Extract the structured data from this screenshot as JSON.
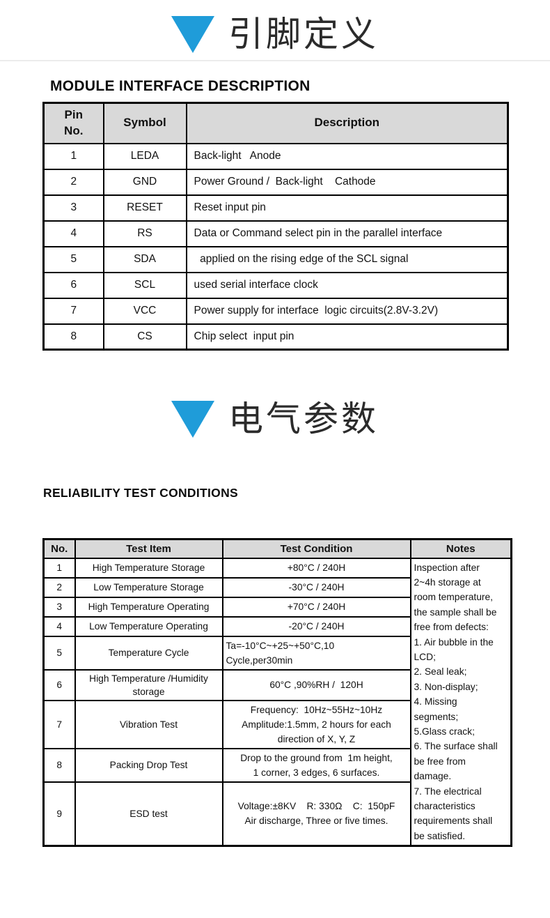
{
  "page": {
    "accent_color": "#1f9cd9",
    "table_header_bg": "#d9d9d9"
  },
  "sections": {
    "pin": {
      "title_cn": "引脚定义",
      "heading": "MODULE INTERFACE DESCRIPTION"
    },
    "elec": {
      "title_cn": "电气参数",
      "heading": "RELIABILITY TEST CONDITIONS"
    }
  },
  "pin_table": {
    "col_pin": "Pin\nNo.",
    "col_symbol": "Symbol",
    "col_description": "Description",
    "rows": [
      {
        "pin": "1",
        "symbol": "LEDA",
        "description": "Back-light   Anode"
      },
      {
        "pin": "2",
        "symbol": "GND",
        "description": "Power Ground /  Back-light    Cathode"
      },
      {
        "pin": "3",
        "symbol": "RESET",
        "description": "Reset input pin"
      },
      {
        "pin": "4",
        "symbol": "RS",
        "description": "Data or Command select pin in the parallel interface"
      },
      {
        "pin": "5",
        "symbol": "SDA",
        "description": "  applied on the rising edge of the SCL signal"
      },
      {
        "pin": "6",
        "symbol": "SCL",
        "description": "used serial interface clock"
      },
      {
        "pin": "7",
        "symbol": "VCC",
        "description": "Power supply for interface  logic circuits(2.8V-3.2V)"
      },
      {
        "pin": "8",
        "symbol": "CS",
        "description": "Chip select  input pin"
      }
    ]
  },
  "reliability_table": {
    "col_no": "No.",
    "col_item": "Test Item",
    "col_condition": "Test Condition",
    "col_notes": "Notes",
    "rows": [
      {
        "no": "1",
        "item": "High Temperature Storage",
        "condition": "+80°C / 240H"
      },
      {
        "no": "2",
        "item": "Low Temperature Storage",
        "condition": "-30°C / 240H"
      },
      {
        "no": "3",
        "item": "High Temperature Operating",
        "condition": "+70°C / 240H"
      },
      {
        "no": "4",
        "item": "Low Temperature Operating",
        "condition": "-20°C / 240H"
      },
      {
        "no": "5",
        "item": "Temperature Cycle",
        "condition": "Ta=-10°C~+25~+50°C,10\nCycle,per30min",
        "condition_align": "left"
      },
      {
        "no": "6",
        "item": "High Temperature /Humidity\nstorage",
        "condition": "60°C ,90%RH /  120H"
      },
      {
        "no": "7",
        "item": "Vibration Test",
        "condition": "Frequency:  10Hz~55Hz~10Hz\nAmplitude:1.5mm, 2 hours for each\ndirection of X, Y, Z"
      },
      {
        "no": "8",
        "item": "Packing Drop Test",
        "condition": "Drop to the ground from  1m height,\n1 corner, 3 edges, 6 surfaces."
      },
      {
        "no": "9",
        "item": "ESD test",
        "condition": "Voltage:±8KV    R: 330Ω    C:  150pF\nAir discharge, Three or five times."
      }
    ],
    "notes": "Inspection after\n2~4h storage at\nroom temperature,\nthe sample shall be\nfree from defects:\n1. Air bubble in the\nLCD;\n2. Seal leak;\n3. Non-display;\n4. Missing\nsegments;\n5.Glass crack;\n6. The surface shall\nbe free from\ndamage.\n7. The electrical\ncharacteristics\nrequirements shall\nbe satisfied."
  }
}
